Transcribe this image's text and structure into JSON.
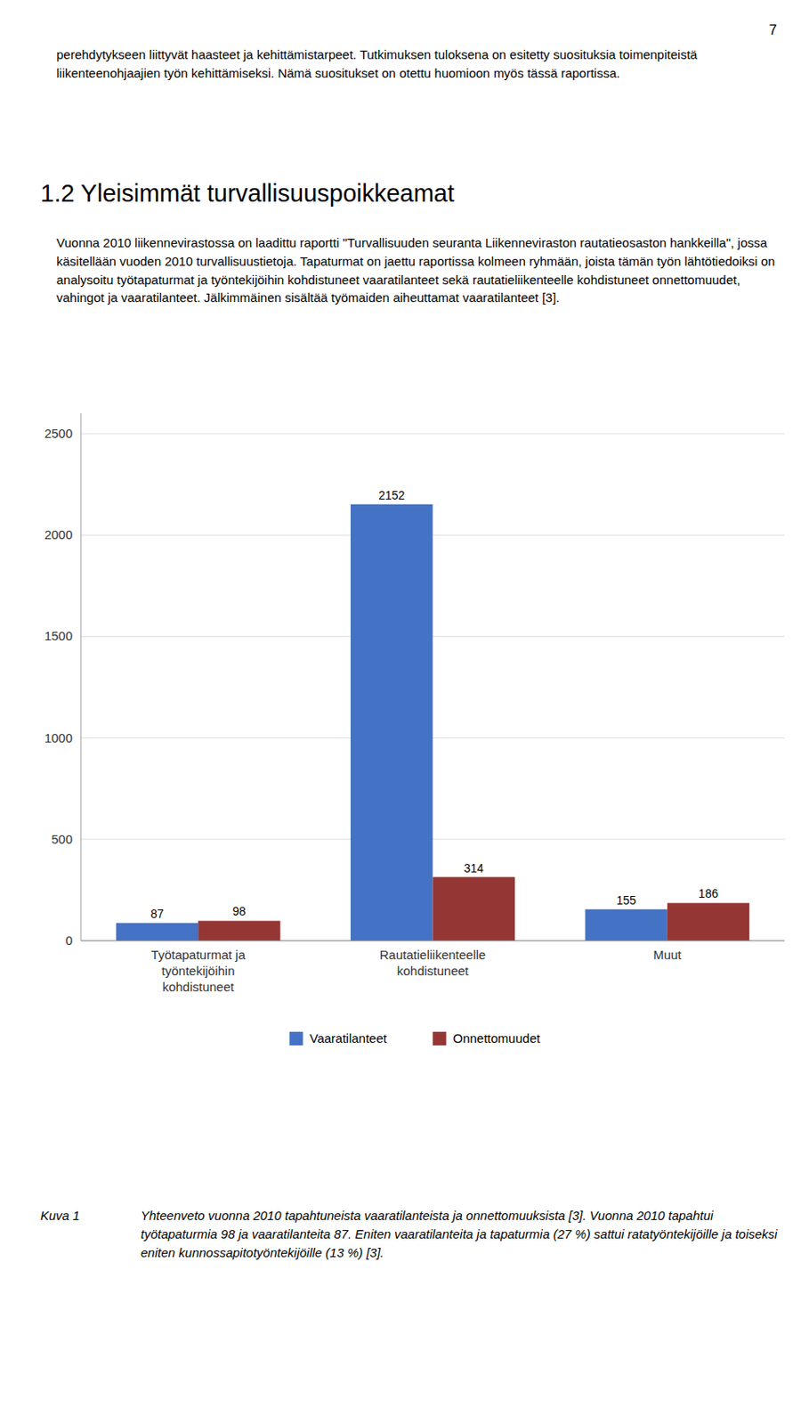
{
  "page_number": "7",
  "intro_text": "perehdytykseen liittyvät haasteet ja kehittämistarpeet. Tutkimuksen tuloksena on esitetty suosituksia toimenpiteistä liikenteenohjaajien työn kehittämiseksi. Nämä suositukset on otettu huomioon myös tässä raportissa.",
  "section_title": "1.2  Yleisimmät turvallisuuspoikkeamat",
  "body_text": "Vuonna 2010 liikennevirastossa on laadittu raportti \"Turvallisuuden seuranta Liikenneviraston rautatieosaston hankkeilla\", jossa käsitellään vuoden 2010 turvallisuustietoja. Tapaturmat on jaettu raportissa kolmeen ryhmään, joista tämän työn lähtötiedoiksi on analysoitu työtapaturmat ja työntekijöihin kohdistuneet vaaratilanteet sekä rautatieliikenteelle kohdistuneet onnettomuudet, vahingot ja vaaratilanteet. Jälkimmäinen sisältää työmaiden aiheuttamat vaaratilanteet [3].",
  "caption_label": "Kuva 1",
  "caption_text": "Yhteenveto vuonna 2010 tapahtuneista vaaratilanteista ja onnettomuuksista [3]. Vuonna 2010 tapahtui työtapaturmia 98 ja vaaratilanteita  87. Eniten vaaratilanteita ja tapaturmia (27 %) sattui ratatyöntekijöille ja toiseksi  eniten kunnossapitotyöntekijöille (13 %) [3].",
  "chart_data": {
    "type": "bar",
    "categories": [
      "Työtapaturmat ja\ntyöntekijöihin\nkohdistuneet",
      "Rautatieliikenteelle\nkohdistuneet",
      "Muut"
    ],
    "series": [
      {
        "name": "Vaaratilanteet",
        "color": "#4472C4",
        "values": [
          87,
          2152,
          155
        ]
      },
      {
        "name": "Onnettomuudet",
        "color": "#943634",
        "values": [
          98,
          314,
          186
        ]
      }
    ],
    "ylim": [
      0,
      2600
    ],
    "yticks": [
      0,
      500,
      1000,
      1500,
      2000,
      2500
    ],
    "grid": true,
    "data_labels": true,
    "legend": "bottom"
  }
}
